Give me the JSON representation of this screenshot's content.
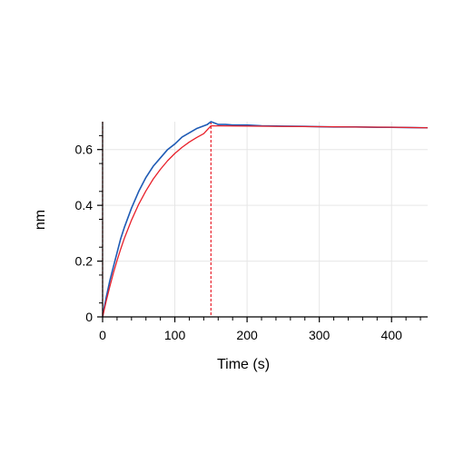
{
  "chart_data": {
    "type": "line",
    "xlabel": "Time (s)",
    "ylabel": "nm",
    "xlim": [
      0,
      450
    ],
    "ylim": [
      0,
      0.7
    ],
    "x_ticks": [
      0,
      100,
      200,
      300,
      400
    ],
    "x_tick_labels": [
      "0",
      "100",
      "200",
      "300",
      "400"
    ],
    "y_ticks": [
      0,
      0.2,
      0.4,
      0.6
    ],
    "y_tick_labels": [
      "0",
      "0.2",
      "0.4",
      "0.6"
    ],
    "grid": true,
    "colors": {
      "measured": "#1f5bb5",
      "fit": "#e8202a",
      "grid": "#e6e6e6",
      "axis": "#000000"
    },
    "series": [
      {
        "x": [
          0,
          2,
          5,
          10,
          15,
          20,
          25,
          30,
          40,
          50,
          60,
          70,
          80,
          90,
          100,
          110,
          120,
          130,
          140,
          145,
          150,
          155,
          160,
          170,
          180,
          200,
          220,
          250,
          280,
          300,
          320,
          350,
          380,
          400,
          420,
          450
        ],
        "y": [
          0,
          0.03,
          0.07,
          0.13,
          0.18,
          0.23,
          0.28,
          0.32,
          0.39,
          0.45,
          0.5,
          0.54,
          0.57,
          0.6,
          0.62,
          0.645,
          0.66,
          0.675,
          0.685,
          0.69,
          0.7,
          0.695,
          0.69,
          0.69,
          0.688,
          0.688,
          0.685,
          0.684,
          0.683,
          0.682,
          0.681,
          0.681,
          0.68,
          0.68,
          0.679,
          0.678
        ]
      },
      {
        "x": [
          0,
          5,
          10,
          15,
          20,
          25,
          30,
          40,
          50,
          60,
          70,
          80,
          90,
          100,
          110,
          120,
          130,
          140,
          150,
          160,
          200,
          250,
          300,
          350,
          400,
          450
        ],
        "y": [
          0,
          0.057,
          0.109,
          0.158,
          0.202,
          0.243,
          0.281,
          0.347,
          0.404,
          0.452,
          0.494,
          0.529,
          0.56,
          0.586,
          0.608,
          0.627,
          0.643,
          0.657,
          0.685,
          0.685,
          0.684,
          0.683,
          0.682,
          0.681,
          0.68,
          0.678
        ]
      }
    ],
    "vlines": [
      {
        "x": 0
      },
      {
        "x": 150
      }
    ]
  }
}
